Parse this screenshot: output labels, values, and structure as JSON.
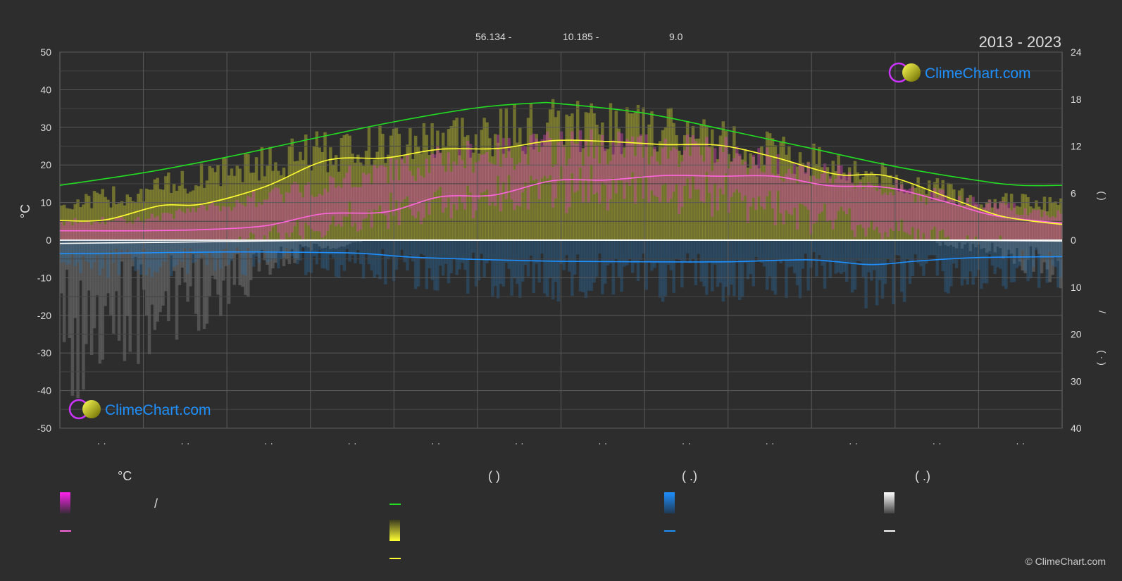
{
  "header": {
    "coord_left": "56.134 -",
    "coord_mid": "10.185 -",
    "elevation": "9.0",
    "period": "2013 - 2023"
  },
  "logo": {
    "text": "ClimeChart.com"
  },
  "copyright": "© ClimeChart.com",
  "axes": {
    "left_unit": "°C",
    "right_upper_marks": "(      )",
    "right_lower_mark_slash": "/",
    "right_lower_marks": "(  ·  )",
    "month_labels": [
      "· ·",
      "· ·",
      "· ·",
      "· ·",
      "· ·",
      "· ·",
      "· ·",
      "· ·",
      "· ·",
      "· ·",
      "· ·",
      "· ·"
    ]
  },
  "legend": {
    "group_temp_header": "°C",
    "group_temp_slash": "/",
    "group_sun_header": "(          )",
    "group_rain_header": "(   .)",
    "group_snow_header": "(   .)"
  },
  "colors": {
    "background": "#2d2d2d",
    "grid": "#5a5a5a",
    "daylight": "#22dd22",
    "sunshine": "#ffff33",
    "sunshine_fill": "#a8a832",
    "temp_mean": "#ff66dd",
    "temp_fill": "#cc44aa",
    "precip": "#1e90ff",
    "precip_fill": "#2a6fa8",
    "snow": "#ffffff",
    "snow_fill": "#777777",
    "zero_line": "#e8e8e8"
  },
  "chart_data": {
    "type": "area",
    "left_axis": {
      "label": "°C",
      "range": [
        -50,
        50
      ],
      "ticks": [
        50,
        40,
        30,
        20,
        10,
        0,
        -10,
        -20,
        -30,
        -40,
        -50
      ]
    },
    "right_axis_upper": {
      "range": [
        0,
        24
      ],
      "ticks": [
        24,
        18,
        12,
        6,
        0
      ]
    },
    "right_axis_lower": {
      "range": [
        0,
        40
      ],
      "ticks": [
        10,
        20,
        30,
        40
      ]
    },
    "x": {
      "type": "day_of_year",
      "months": 12,
      "month_labels": [
        "· ·",
        "· ·",
        "· ·",
        "· ·",
        "· ·",
        "· ·",
        "· ·",
        "· ·",
        "· ·",
        "· ·",
        "· ·",
        "· ·"
      ]
    },
    "grid": true,
    "series": [
      {
        "id": "daylight_hours",
        "axis": "right_upper",
        "kind": "line",
        "x": [
          0,
          1,
          2,
          3,
          4,
          5,
          5.7,
          6,
          7,
          8,
          9,
          10,
          11,
          11.5,
          12
        ],
        "values": [
          7.0,
          8.6,
          10.6,
          12.9,
          15.1,
          16.9,
          17.5,
          17.4,
          16.2,
          14.0,
          11.7,
          9.4,
          7.6,
          7.0,
          7.0
        ]
      },
      {
        "id": "sunshine_hours",
        "axis": "right_upper",
        "kind": "line",
        "x": [
          0,
          0.55,
          1.2,
          1.7,
          2.45,
          3.2,
          3.9,
          4.55,
          5.25,
          5.9,
          6.55,
          7.25,
          7.9,
          8.55,
          9.3,
          9.9,
          10.7,
          11.3,
          12
        ],
        "values": [
          2.5,
          2.6,
          4.4,
          4.6,
          6.8,
          10.2,
          10.5,
          11.6,
          11.7,
          12.7,
          12.6,
          12.2,
          12.1,
          10.6,
          8.4,
          8.2,
          5.2,
          3.0,
          2.0
        ]
      },
      {
        "id": "temperature_mean",
        "axis": "left",
        "kind": "line",
        "x": [
          0,
          1,
          1.7,
          2.45,
          3.15,
          3.9,
          4.55,
          5.2,
          5.9,
          6.55,
          7.25,
          7.9,
          8.55,
          9.2,
          9.9,
          10.6,
          11.2,
          12
        ],
        "values": [
          2.5,
          2.5,
          2.8,
          3.8,
          7.0,
          7.5,
          11.5,
          12.0,
          15.8,
          16.0,
          17.2,
          17.0,
          17.0,
          14.5,
          14.0,
          10.2,
          6.5,
          4.5
        ]
      },
      {
        "id": "temperature_band_max",
        "axis": "left",
        "kind": "band_top",
        "x": [
          0,
          1,
          2,
          3,
          4,
          5,
          6,
          7,
          8,
          9,
          10,
          11,
          12
        ],
        "values": [
          5,
          6,
          10,
          15,
          20,
          24,
          26,
          26,
          24,
          19,
          14,
          10,
          7
        ]
      },
      {
        "id": "sunshine_band_max",
        "axis": "left",
        "kind": "band_top",
        "x": [
          0,
          1,
          2,
          3,
          4,
          5,
          6,
          7,
          8,
          9,
          10,
          11,
          12
        ],
        "values": [
          10,
          14,
          20,
          25,
          28,
          31,
          33,
          32,
          28,
          23,
          17,
          12,
          10
        ]
      },
      {
        "id": "precipitation",
        "axis": "right_lower",
        "kind": "line",
        "x": [
          0,
          1,
          2,
          3,
          3.6,
          4.2,
          5,
          6,
          7,
          8,
          9,
          9.7,
          10.3,
          11,
          12
        ],
        "values": [
          2.9,
          2.7,
          2.5,
          2.6,
          2.8,
          3.6,
          4.1,
          4.5,
          4.6,
          4.6,
          4.2,
          5.2,
          4.4,
          3.7,
          3.5
        ]
      },
      {
        "id": "snowfall",
        "axis": "right_lower",
        "kind": "line",
        "x": [
          0,
          1,
          2,
          3,
          4,
          5,
          6,
          7,
          8,
          9,
          10,
          11,
          12
        ],
        "values": [
          0.7,
          0.5,
          0.3,
          0.05,
          0,
          0,
          0,
          0,
          0,
          0,
          0,
          0.05,
          0.2
        ]
      }
    ]
  }
}
